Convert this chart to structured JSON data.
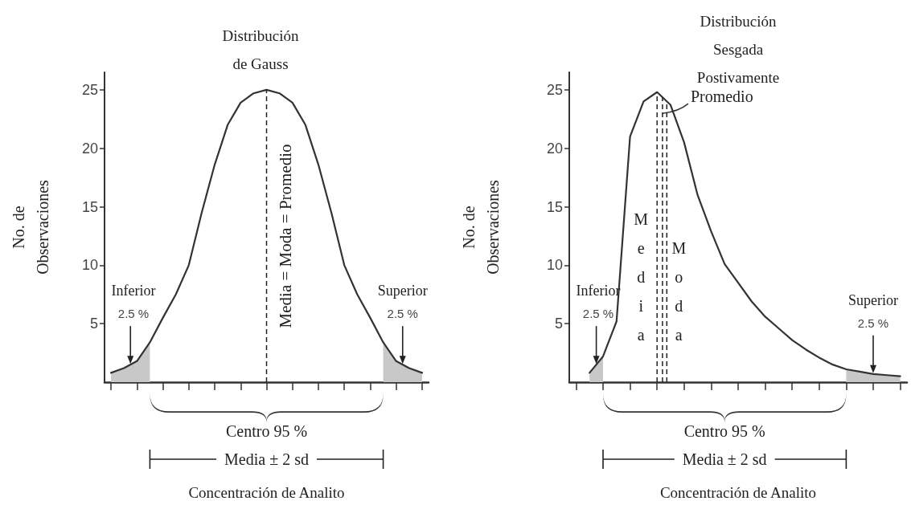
{
  "chart_data": [
    {
      "type": "line",
      "title": "Distribución\nde Gauss",
      "xlabel": "Concentración de Analito",
      "ylabel": "No. de\nObservaciones",
      "categories": [
        null,
        null,
        null,
        null,
        null,
        null,
        null,
        null,
        null,
        null,
        null,
        null,
        null,
        null,
        null,
        null,
        null,
        null,
        null,
        null,
        null,
        null,
        null,
        null,
        null
      ],
      "ylim": [
        0,
        26.5
      ],
      "yticks": [
        5,
        10,
        15,
        20,
        25
      ],
      "series": [
        {
          "color": "#333333",
          "values": [
            0.8,
            1.2,
            1.8,
            3.4,
            5.5,
            7.5,
            10,
            14.5,
            18.6,
            22,
            23.9,
            24.7,
            25,
            24.7,
            23.9,
            22,
            18.6,
            14.5,
            10,
            7.5,
            5.5,
            3.4,
            1.8,
            1.2,
            0.8
          ]
        },
        {
          "type": "area",
          "color": "#c8c8c8",
          "values": [
            0.8,
            1.2,
            1.8,
            3.4,
            null,
            null,
            null,
            null,
            null,
            null,
            null,
            null,
            null,
            null,
            null,
            null,
            null,
            null,
            null,
            null,
            null,
            3.4,
            1.8,
            1.2,
            0.8
          ]
        }
      ],
      "annotations": [
        "Inferior\n2.5 %",
        "Superior\n2.5 %",
        "Centro 95 %",
        "Media ± 2 sd",
        "Media = Moda = Promedio"
      ],
      "marker": "none",
      "line_style": "solid"
    },
    {
      "type": "line",
      "title": "Distribución\nSesgada\nPostivamente",
      "xlabel": "Concentración de Analito",
      "ylabel": "No. de\nObservaciones",
      "categories": [
        null,
        null,
        null,
        null,
        null,
        null,
        null,
        null,
        null,
        null,
        null,
        null,
        null,
        null,
        null,
        null,
        null,
        null,
        null,
        null,
        null,
        null,
        null,
        null,
        null
      ],
      "ylim": [
        0,
        26.5
      ],
      "yticks": [
        5,
        10,
        15,
        20,
        25
      ],
      "series": [
        {
          "color": "#333333",
          "values": [
            null,
            0.8,
            2.2,
            5.2,
            21,
            24,
            24.8,
            23.7,
            20.5,
            16,
            12.9,
            10.1,
            8.5,
            6.9,
            5.6,
            4.6,
            3.6,
            2.8,
            2.1,
            1.5,
            1.1,
            0.9,
            0.7,
            0.6,
            0.5
          ]
        },
        {
          "type": "area",
          "color": "#c8c8c8",
          "values": [
            null,
            0.8,
            2.2,
            null,
            null,
            null,
            null,
            null,
            null,
            null,
            null,
            null,
            null,
            null,
            null,
            null,
            null,
            null,
            null,
            null,
            1.1,
            0.9,
            0.7,
            0.6,
            0.5
          ]
        }
      ],
      "annotations": [
        "Inferior\n2.5 %",
        "Superior\n2.5 %",
        "Centro 95 %",
        "Media ± 2 sd",
        "Media",
        "Promedio",
        "Moda"
      ],
      "marker": "none",
      "line_style": "solid"
    }
  ]
}
